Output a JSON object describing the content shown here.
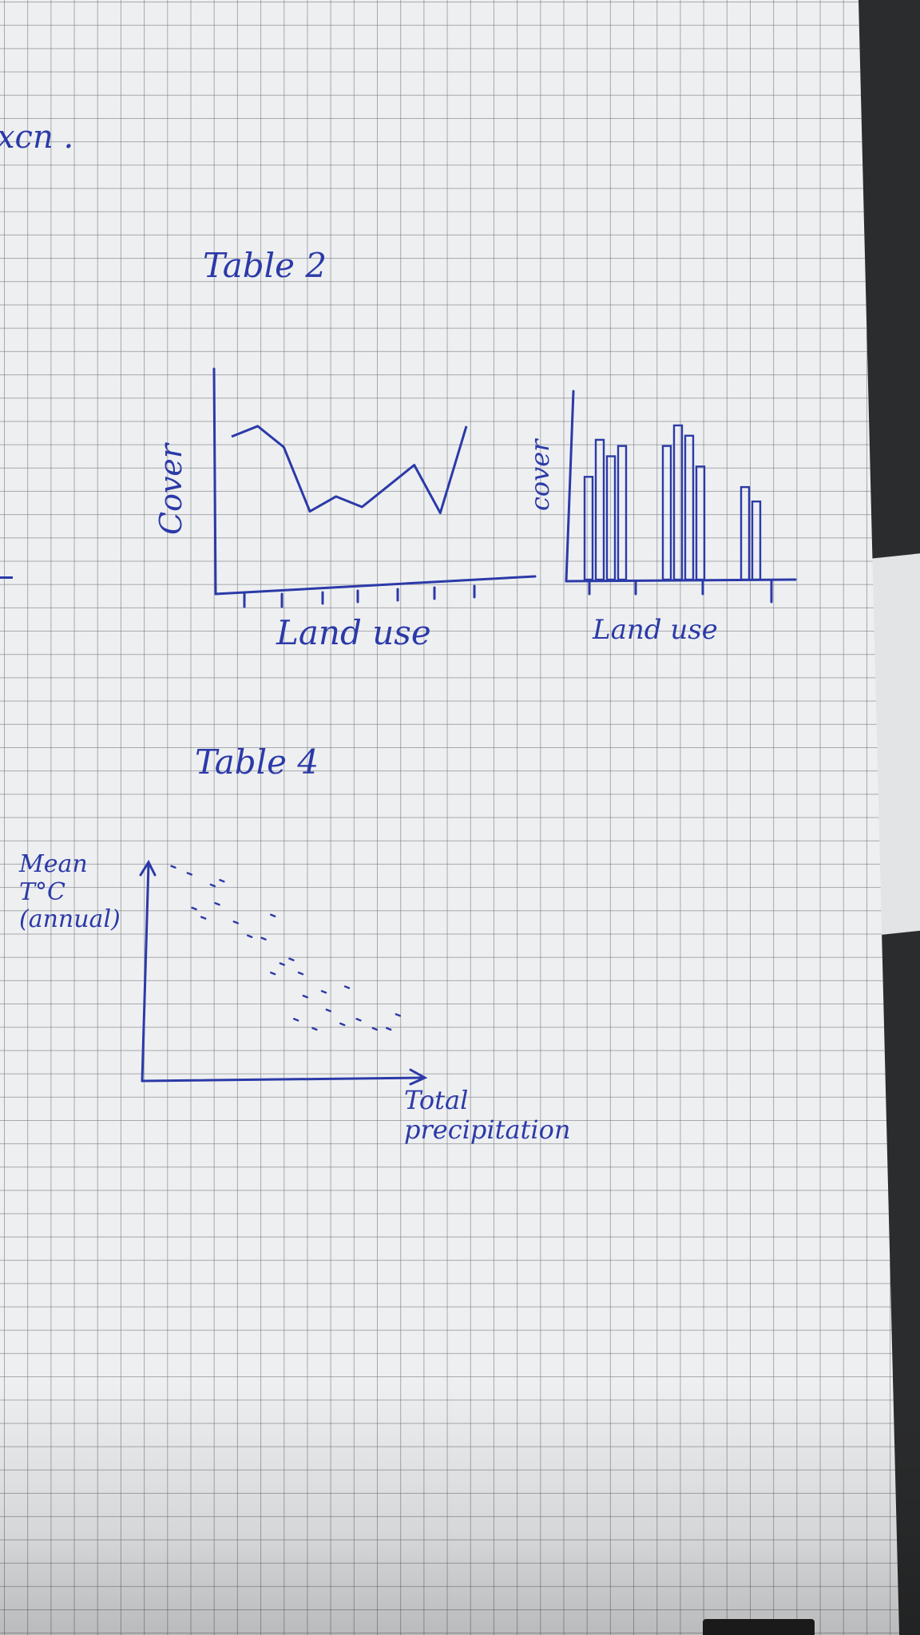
{
  "ink_color": "#2b3aa8",
  "fragment_text": "xcn .",
  "chart_data": [
    {
      "type": "line",
      "title": "Table 2",
      "xlabel": "Land use",
      "ylabel": "Cover",
      "x": [
        1,
        2,
        3,
        4,
        5,
        6,
        7,
        8,
        9,
        10
      ],
      "values": [
        55,
        62,
        48,
        5,
        15,
        8,
        22,
        36,
        4,
        62
      ],
      "ylim": [
        0,
        80
      ],
      "grid": false
    },
    {
      "type": "bar",
      "title": "",
      "xlabel": "Land use",
      "ylabel": "cover",
      "values": [
        50,
        68,
        60,
        65,
        0,
        0,
        0,
        65,
        75,
        70,
        55,
        0,
        0,
        0,
        45,
        38
      ],
      "ylim": [
        0,
        80
      ],
      "grid": false
    },
    {
      "type": "scatter",
      "title": "Table 4",
      "xlabel": "Total precipitation",
      "ylabel": "Mean T°C (annual)",
      "points": [
        [
          5,
          88
        ],
        [
          12,
          85
        ],
        [
          22,
          80
        ],
        [
          26,
          82
        ],
        [
          14,
          70
        ],
        [
          24,
          72
        ],
        [
          18,
          66
        ],
        [
          32,
          64
        ],
        [
          38,
          58
        ],
        [
          44,
          57
        ],
        [
          48,
          67
        ],
        [
          52,
          46
        ],
        [
          56,
          48
        ],
        [
          60,
          42
        ],
        [
          48,
          42
        ],
        [
          62,
          32
        ],
        [
          70,
          34
        ],
        [
          80,
          36
        ],
        [
          72,
          26
        ],
        [
          78,
          20
        ],
        [
          85,
          22
        ],
        [
          92,
          18
        ],
        [
          98,
          18
        ],
        [
          102,
          24
        ],
        [
          58,
          22
        ],
        [
          66,
          18
        ]
      ],
      "grid": false
    }
  ]
}
